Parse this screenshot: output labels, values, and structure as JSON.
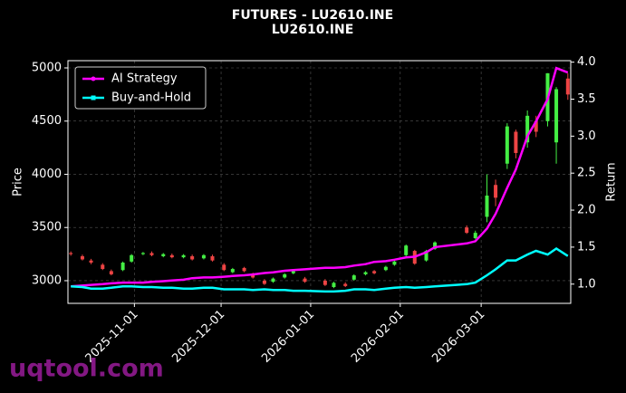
{
  "chart_data": {
    "type": "candlestick",
    "title": "FUTURES - LU2610.INE",
    "subtitle": "LU2610.INE",
    "y_label": "Price",
    "y2_label": "Return",
    "watermark": "uqtool.com",
    "x": [
      "2025-10-10",
      "2025-10-14",
      "2025-10-17",
      "2025-10-21",
      "2025-10-24",
      "2025-10-28",
      "2025-10-31",
      "2025-11-04",
      "2025-11-07",
      "2025-11-11",
      "2025-11-14",
      "2025-11-18",
      "2025-11-21",
      "2025-11-25",
      "2025-11-28",
      "2025-12-02",
      "2025-12-05",
      "2025-12-09",
      "2025-12-12",
      "2025-12-16",
      "2025-12-19",
      "2025-12-23",
      "2025-12-26",
      "2025-12-30",
      "2026-01-06",
      "2026-01-09",
      "2026-01-13",
      "2026-01-16",
      "2026-01-20",
      "2026-01-23",
      "2026-01-27",
      "2026-01-30",
      "2026-02-03",
      "2026-02-06",
      "2026-02-10",
      "2026-02-13",
      "2026-02-24",
      "2026-02-27",
      "2026-03-03",
      "2026-03-06",
      "2026-03-10",
      "2026-03-13",
      "2026-03-17",
      "2026-03-20",
      "2026-03-24",
      "2026-03-27",
      "2026-03-31"
    ],
    "open": [
      3260,
      3230,
      3190,
      3150,
      3090,
      3100,
      3180,
      3250,
      3260,
      3230,
      3240,
      3220,
      3230,
      3210,
      3230,
      3150,
      3080,
      3120,
      3060,
      3000,
      2990,
      3030,
      3070,
      3020,
      3000,
      2940,
      2970,
      3010,
      3060,
      3090,
      3100,
      3150,
      3240,
      3280,
      3190,
      3300,
      3500,
      3400,
      3600,
      3900,
      4100,
      4400,
      4300,
      4500,
      4500,
      4300,
      4900
    ],
    "high": [
      3275,
      3245,
      3205,
      3165,
      3105,
      3180,
      3250,
      3270,
      3275,
      3260,
      3255,
      3250,
      3245,
      3250,
      3245,
      3165,
      3120,
      3130,
      3075,
      3015,
      3030,
      3070,
      3100,
      3035,
      3015,
      2990,
      2985,
      3060,
      3090,
      3100,
      3140,
      3190,
      3340,
      3290,
      3290,
      3370,
      3520,
      3470,
      4000,
      3950,
      4480,
      4420,
      4600,
      4550,
      4950,
      4820,
      4950
    ],
    "low": [
      3235,
      3190,
      3155,
      3100,
      3050,
      3090,
      3170,
      3240,
      3230,
      3220,
      3210,
      3210,
      3190,
      3200,
      3180,
      3090,
      3070,
      3080,
      3020,
      2960,
      2980,
      3020,
      3060,
      2980,
      2950,
      2930,
      2940,
      3000,
      3050,
      3060,
      3090,
      3140,
      3230,
      3150,
      3180,
      3290,
      3440,
      3390,
      3550,
      3700,
      4050,
      4150,
      4250,
      4350,
      4450,
      4100,
      4700
    ],
    "close": [
      3250,
      3200,
      3170,
      3110,
      3060,
      3170,
      3240,
      3260,
      3240,
      3250,
      3220,
      3240,
      3200,
      3240,
      3190,
      3100,
      3110,
      3090,
      3030,
      2970,
      3020,
      3060,
      3090,
      2990,
      2960,
      2980,
      2950,
      3050,
      3080,
      3070,
      3130,
      3180,
      3330,
      3160,
      3280,
      3360,
      3450,
      3450,
      3800,
      3780,
      4450,
      4200,
      4550,
      4400,
      4950,
      4800,
      4750
    ],
    "up_color": "#44ee44",
    "down_color": "#ee4444",
    "series": [
      {
        "name": "AI Strategy",
        "color": "#ff00ff",
        "axis": "y2",
        "values": [
          0.97,
          0.98,
          0.99,
          1.0,
          1.01,
          1.02,
          1.02,
          1.02,
          1.03,
          1.04,
          1.05,
          1.06,
          1.08,
          1.09,
          1.09,
          1.1,
          1.11,
          1.12,
          1.13,
          1.15,
          1.16,
          1.18,
          1.19,
          1.2,
          1.22,
          1.22,
          1.23,
          1.25,
          1.27,
          1.3,
          1.31,
          1.33,
          1.36,
          1.37,
          1.43,
          1.5,
          1.55,
          1.58,
          1.75,
          1.95,
          2.3,
          2.55,
          3.0,
          3.2,
          3.5,
          3.92,
          3.86
        ]
      },
      {
        "name": "Buy-and-Hold",
        "color": "#00ffff",
        "axis": "y2",
        "values": [
          0.97,
          0.96,
          0.94,
          0.94,
          0.95,
          0.97,
          0.97,
          0.96,
          0.96,
          0.95,
          0.95,
          0.94,
          0.94,
          0.95,
          0.95,
          0.93,
          0.93,
          0.93,
          0.92,
          0.93,
          0.92,
          0.92,
          0.91,
          0.91,
          0.9,
          0.9,
          0.91,
          0.93,
          0.93,
          0.92,
          0.94,
          0.95,
          0.96,
          0.95,
          0.96,
          0.97,
          1.0,
          1.02,
          1.12,
          1.2,
          1.32,
          1.32,
          1.4,
          1.45,
          1.4,
          1.48,
          1.38
        ]
      }
    ],
    "xlim": [
      "2025-10-09",
      "2026-04-01"
    ],
    "xticks": [
      "2025-11-01",
      "2025-12-01",
      "2026-01-01",
      "2026-02-01",
      "2026-03-01"
    ],
    "ylim": [
      2787,
      5068
    ],
    "yticks": [
      3000,
      3500,
      4000,
      4500,
      5000
    ],
    "y2lim": [
      0.74,
      4.02
    ],
    "y2ticks": [
      {
        "value": 1,
        "label": "1.0"
      },
      {
        "value": 1.5,
        "label": "1.5"
      },
      {
        "value": 2,
        "label": "2.0"
      },
      {
        "value": 2.5,
        "label": "2.5"
      },
      {
        "value": 3,
        "label": "3.0"
      },
      {
        "value": 3.5,
        "label": "3.5"
      },
      {
        "value": 4,
        "label": "4.0"
      }
    ],
    "grid": true,
    "legend": "upper left"
  }
}
